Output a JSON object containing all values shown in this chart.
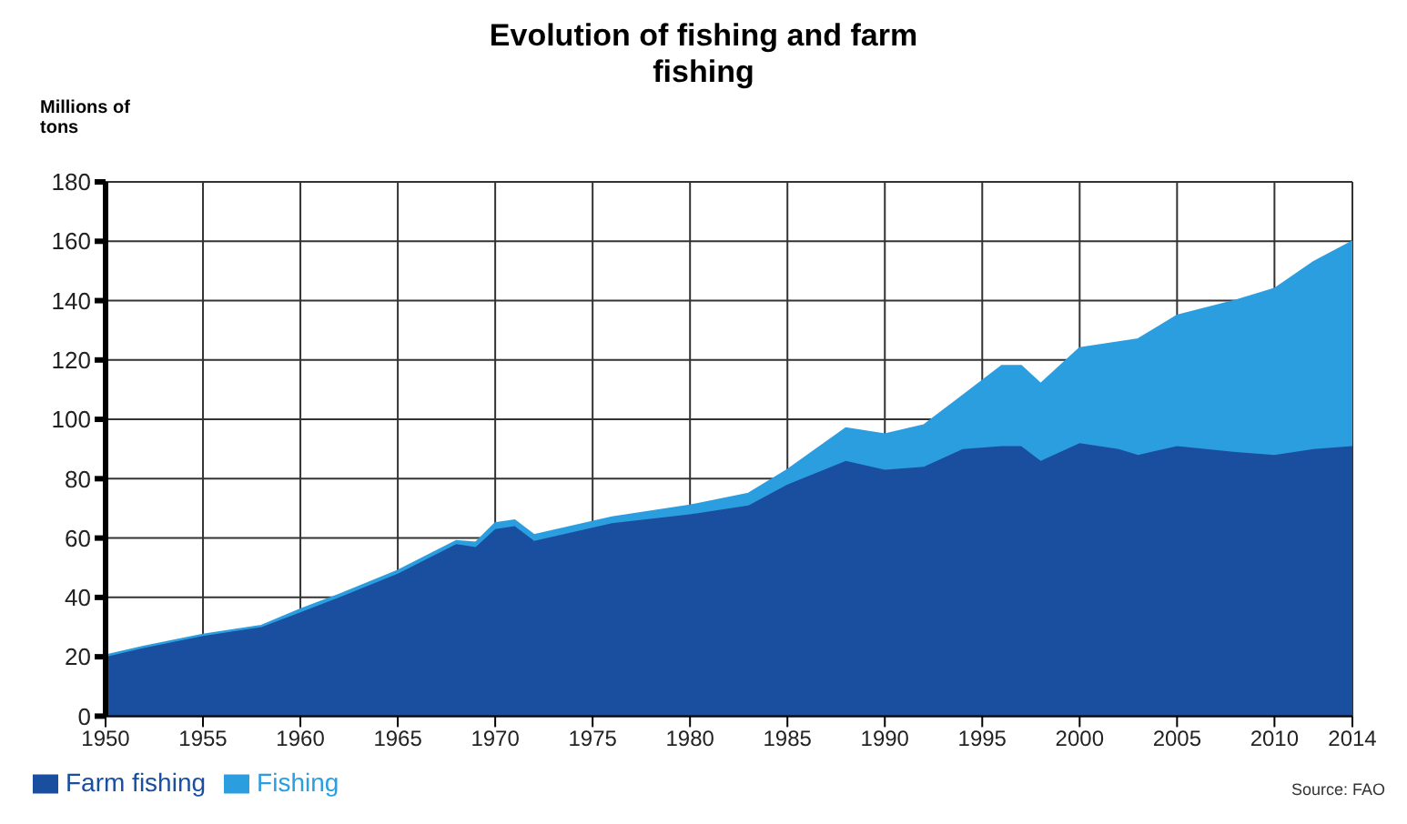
{
  "chart_data": {
    "type": "area",
    "title": "Evolution of fishing and farm fishing",
    "ylabel": "Millions of tons",
    "stacked": true,
    "x": [
      1950,
      1952,
      1955,
      1958,
      1960,
      1962,
      1965,
      1968,
      1969,
      1970,
      1971,
      1972,
      1974,
      1976,
      1980,
      1983,
      1985,
      1988,
      1990,
      1992,
      1994,
      1996,
      1997,
      1998,
      2000,
      2002,
      2003,
      2005,
      2008,
      2010,
      2012,
      2014
    ],
    "series": [
      {
        "name": "Farm fishing",
        "color": "#1a4fa0",
        "values": [
          20,
          23,
          27,
          30,
          35,
          40,
          48,
          58,
          57,
          63,
          64,
          59,
          62,
          65,
          68,
          71,
          78,
          86,
          83,
          84,
          90,
          91,
          91,
          86,
          92,
          90,
          88,
          91,
          89,
          88,
          90,
          91
        ]
      },
      {
        "name": "Fishing",
        "color": "#2b9ee0",
        "values": [
          0.5,
          0.5,
          0.5,
          0.5,
          1,
          1,
          1,
          1,
          1.5,
          2,
          2,
          2,
          2,
          2,
          3,
          4,
          5,
          11,
          12,
          14,
          18,
          27,
          27,
          26,
          32,
          36,
          39,
          44,
          51,
          56,
          63,
          69
        ]
      }
    ],
    "xlim": [
      1950,
      2014
    ],
    "xticks": [
      1950,
      1955,
      1960,
      1965,
      1970,
      1975,
      1980,
      1985,
      1990,
      1995,
      2000,
      2005,
      2010,
      2014
    ],
    "ylim": [
      0,
      180
    ],
    "yticks": [
      0,
      20,
      40,
      60,
      80,
      100,
      120,
      140,
      160,
      180
    ],
    "grid": true,
    "legend": "bottom",
    "annotations": [
      "Source: FAO"
    ]
  }
}
